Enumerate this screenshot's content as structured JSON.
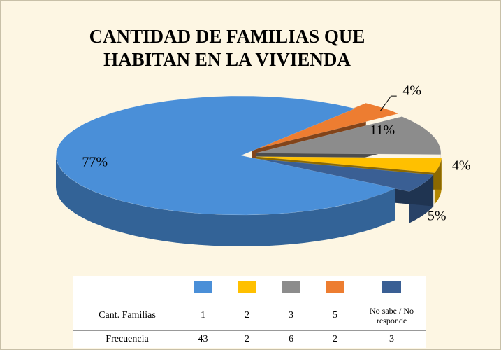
{
  "chart_data": {
    "type": "pie",
    "title": "CANTIDAD DE FAMILIAS QUE HABITAN EN LA VIVIENDA",
    "categories": [
      "1",
      "2",
      "3",
      "5",
      "No sabe / No responde"
    ],
    "values": [
      77,
      4,
      11,
      4,
      5
    ],
    "value_labels": [
      "77%",
      "4%",
      "11%",
      "4%",
      "5%"
    ],
    "colors": [
      "#4a8fd8",
      "#ffc000",
      "#8c8c8c",
      "#ed7d31",
      "#3a5f94"
    ],
    "table_row_labels": [
      "Cant. Familias",
      "Frecuencia"
    ],
    "frequencies": [
      43,
      2,
      6,
      2,
      3
    ]
  }
}
